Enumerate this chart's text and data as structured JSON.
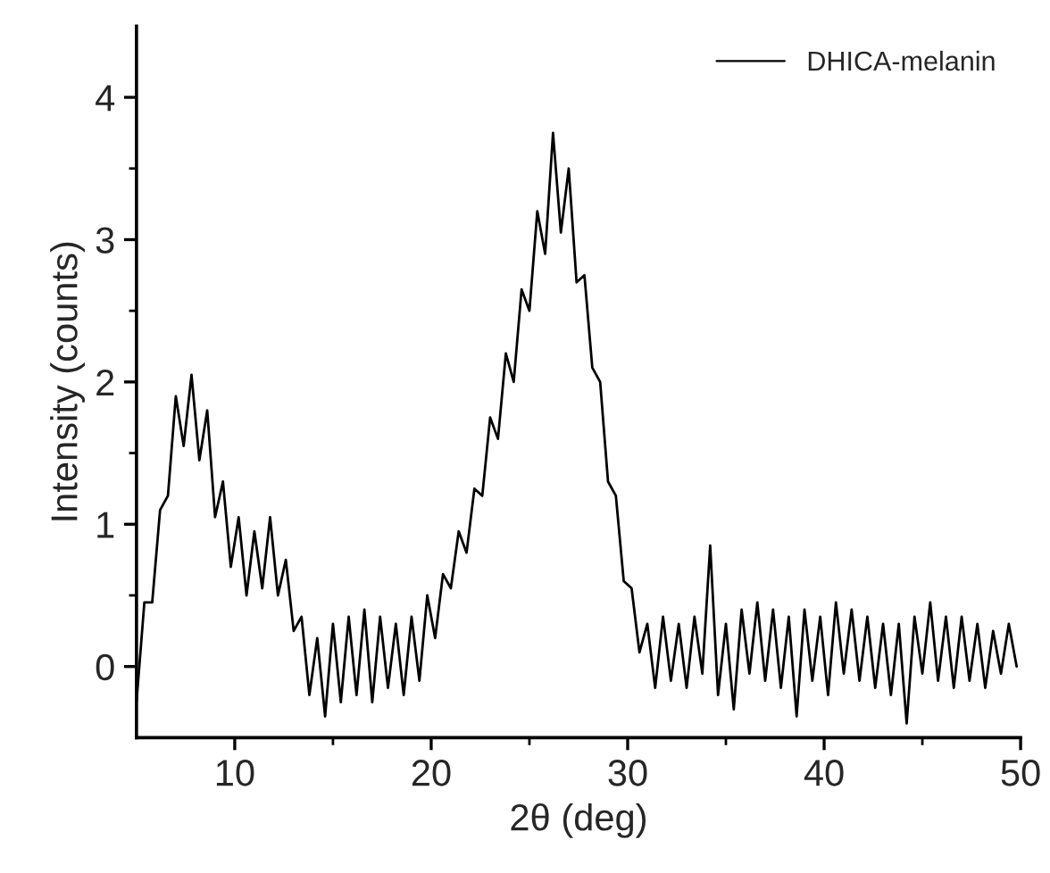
{
  "chart_data": {
    "type": "line",
    "xlabel": "2θ (deg)",
    "ylabel": "Intensity (counts)",
    "xlim": [
      5,
      50
    ],
    "ylim": [
      -0.5,
      4.5
    ],
    "xticks": [
      10,
      {
        "value": 15,
        "label": null
      },
      20,
      {
        "value": 25,
        "label": null
      },
      30,
      {
        "value": 35,
        "label": null
      },
      40,
      {
        "value": 45,
        "label": null
      },
      50
    ],
    "yticks": [
      0,
      {
        "value": 0.5,
        "label": null
      },
      1,
      {
        "value": 1.5,
        "label": null
      },
      2,
      {
        "value": 2.5,
        "label": null
      },
      3,
      {
        "value": 3.5,
        "label": null
      },
      4
    ],
    "grid": false,
    "legend": "top right",
    "marker": "none",
    "line_style": "solid",
    "x": [
      5.0,
      5.4,
      5.8,
      6.2,
      6.6,
      7.0,
      7.4,
      7.8,
      8.2,
      8.6,
      9.0,
      9.4,
      9.8,
      10.2,
      10.6,
      11.0,
      11.4,
      11.8,
      12.2,
      12.6,
      13.0,
      13.4,
      13.8,
      14.2,
      14.6,
      15.0,
      15.4,
      15.8,
      16.2,
      16.6,
      17.0,
      17.4,
      17.8,
      18.2,
      18.6,
      19.0,
      19.4,
      19.8,
      20.2,
      20.6,
      21.0,
      21.4,
      21.8,
      22.2,
      22.6,
      23.0,
      23.4,
      23.8,
      24.2,
      24.6,
      25.0,
      25.4,
      25.8,
      26.2,
      26.6,
      27.0,
      27.4,
      27.8,
      28.2,
      28.6,
      29.0,
      29.4,
      29.8,
      30.2,
      30.6,
      31.0,
      31.4,
      31.8,
      32.2,
      32.6,
      33.0,
      33.4,
      33.8,
      34.2,
      34.6,
      35.0,
      35.4,
      35.8,
      36.2,
      36.6,
      37.0,
      37.4,
      37.8,
      38.2,
      38.6,
      39.0,
      39.4,
      39.8,
      40.2,
      40.6,
      41.0,
      41.4,
      41.8,
      42.2,
      42.6,
      43.0,
      43.4,
      43.8,
      44.2,
      44.6,
      45.0,
      45.4,
      45.8,
      46.2,
      46.6,
      47.0,
      47.4,
      47.8,
      48.2,
      48.6,
      49.0,
      49.4,
      49.8
    ],
    "series": [
      {
        "name": "DHICA-melanin",
        "color": "#000000",
        "values": [
          -0.25,
          0.45,
          0.45,
          1.1,
          1.2,
          1.9,
          1.55,
          2.05,
          1.45,
          1.8,
          1.05,
          1.3,
          0.7,
          1.05,
          0.5,
          0.95,
          0.55,
          1.05,
          0.5,
          0.75,
          0.25,
          0.35,
          -0.2,
          0.2,
          -0.35,
          0.3,
          -0.25,
          0.35,
          -0.2,
          0.4,
          -0.25,
          0.35,
          -0.15,
          0.3,
          -0.2,
          0.35,
          -0.1,
          0.5,
          0.2,
          0.65,
          0.55,
          0.95,
          0.8,
          1.25,
          1.2,
          1.75,
          1.6,
          2.2,
          2.0,
          2.65,
          2.5,
          3.2,
          2.9,
          3.75,
          3.05,
          3.5,
          2.7,
          2.75,
          2.1,
          2.0,
          1.3,
          1.2,
          0.6,
          0.55,
          0.1,
          0.3,
          -0.15,
          0.35,
          -0.1,
          0.3,
          -0.15,
          0.35,
          -0.05,
          0.85,
          -0.2,
          0.3,
          -0.3,
          0.4,
          -0.05,
          0.45,
          -0.1,
          0.4,
          -0.15,
          0.35,
          -0.35,
          0.4,
          -0.1,
          0.35,
          -0.2,
          0.45,
          -0.05,
          0.4,
          -0.1,
          0.35,
          -0.15,
          0.3,
          -0.2,
          0.3,
          -0.4,
          0.35,
          -0.05,
          0.45,
          -0.1,
          0.35,
          -0.15,
          0.35,
          -0.1,
          0.3,
          -0.15,
          0.25,
          -0.05,
          0.3,
          0.0
        ]
      }
    ]
  }
}
